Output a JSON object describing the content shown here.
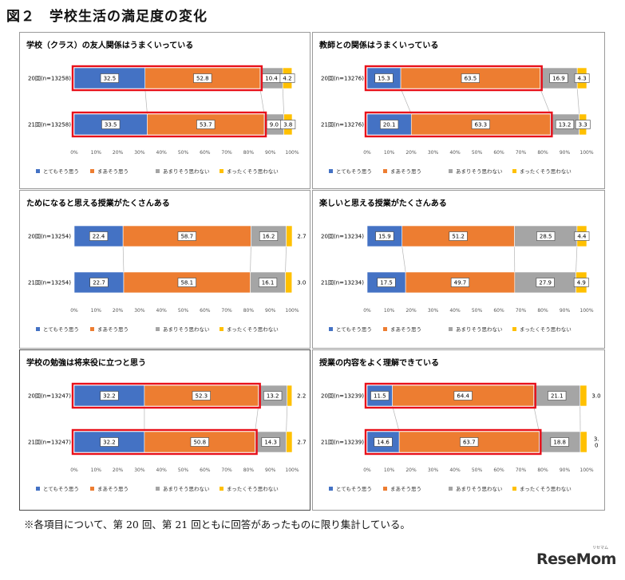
{
  "figure": {
    "title": "図２　学校生活の満足度の変化",
    "footnote": "※各項目について、第 20 回、第 21 回ともに回答があったものに限り集計している。",
    "watermark": "ReseMom",
    "watermark_sub": "リセマム"
  },
  "legend": [
    "とてもそう思う",
    "まあそう思う",
    "あまりそう思わない",
    "まったくそう思わない"
  ],
  "colors": [
    "#4472c4",
    "#ed7d31",
    "#a5a5a5",
    "#ffc000"
  ],
  "highlight_color": "#e8101a",
  "chart_data": [
    {
      "type": "bar",
      "title": "学校（クラス）の友人関係はうまくいっている",
      "categories": [
        "20回(n=13258)",
        "21回(n=13258)"
      ],
      "series": [
        {
          "name": "とてもそう思う",
          "values": [
            32.5,
            33.5
          ]
        },
        {
          "name": "まあそう思う",
          "values": [
            52.8,
            53.7
          ]
        },
        {
          "name": "あまりそう思わない",
          "values": [
            10.4,
            9.0
          ]
        },
        {
          "name": "まったくそう思わない",
          "values": [
            4.2,
            3.8
          ]
        }
      ],
      "labels": [
        [
          "32.5",
          "52.8",
          "10.4",
          "4.2"
        ],
        [
          "33.5",
          "53.7",
          "9.0",
          "3.8"
        ]
      ],
      "outside": [
        false,
        false
      ],
      "highlight": [
        true,
        true
      ],
      "xlim": [
        0,
        100
      ],
      "xticks": [
        "0%",
        "10%",
        "20%",
        "30%",
        "40%",
        "50%",
        "60%",
        "70%",
        "80%",
        "90%",
        "100%"
      ],
      "legend_position": "bottom"
    },
    {
      "type": "bar",
      "title": "教師との関係はうまくいっている",
      "categories": [
        "20回(n=13276)",
        "21回(n=13276)"
      ],
      "series": [
        {
          "name": "とてもそう思う",
          "values": [
            15.3,
            20.1
          ]
        },
        {
          "name": "まあそう思う",
          "values": [
            63.5,
            63.3
          ]
        },
        {
          "name": "あまりそう思わない",
          "values": [
            16.9,
            13.2
          ]
        },
        {
          "name": "まったくそう思わない",
          "values": [
            4.3,
            3.3
          ]
        }
      ],
      "labels": [
        [
          "15.3",
          "63.5",
          "16.9",
          "4.3"
        ],
        [
          "20.1",
          "63.3",
          "13.2",
          "3.3"
        ]
      ],
      "outside": [
        false,
        false
      ],
      "highlight": [
        true,
        true
      ],
      "xlim": [
        0,
        100
      ],
      "xticks": [
        "0%",
        "10%",
        "20%",
        "30%",
        "40%",
        "50%",
        "60%",
        "70%",
        "80%",
        "90%",
        "100%"
      ],
      "legend_position": "bottom"
    },
    {
      "type": "bar",
      "title": "ためになると思える授業がたくさんある",
      "categories": [
        "20回(n=13254)",
        "21回(n=13254)"
      ],
      "series": [
        {
          "name": "とてもそう思う",
          "values": [
            22.4,
            22.7
          ]
        },
        {
          "name": "まあそう思う",
          "values": [
            58.7,
            58.1
          ]
        },
        {
          "name": "あまりそう思わない",
          "values": [
            16.2,
            16.1
          ]
        },
        {
          "name": "まったくそう思わない",
          "values": [
            2.7,
            3.0
          ]
        }
      ],
      "labels": [
        [
          "22.4",
          "58.7",
          "16.2",
          "2.7"
        ],
        [
          "22.7",
          "58.1",
          "16.1",
          "3.0"
        ]
      ],
      "outside": [
        true,
        true
      ],
      "highlight": [
        false,
        false
      ],
      "xlim": [
        0,
        100
      ],
      "xticks": [
        "0%",
        "10%",
        "20%",
        "30%",
        "40%",
        "50%",
        "60%",
        "70%",
        "80%",
        "90%",
        "100%"
      ],
      "legend_position": "bottom"
    },
    {
      "type": "bar",
      "title": "楽しいと思える授業がたくさんある",
      "categories": [
        "20回(n=13234)",
        "21回(n=13234)"
      ],
      "series": [
        {
          "name": "とてもそう思う",
          "values": [
            15.9,
            17.5
          ]
        },
        {
          "name": "まあそう思う",
          "values": [
            51.2,
            49.7
          ]
        },
        {
          "name": "あまりそう思わない",
          "values": [
            28.5,
            27.9
          ]
        },
        {
          "name": "まったくそう思わない",
          "values": [
            4.4,
            4.9
          ]
        }
      ],
      "labels": [
        [
          "15.9",
          "51.2",
          "28.5",
          "4.4"
        ],
        [
          "17.5",
          "49.7",
          "27.9",
          "4.9"
        ]
      ],
      "outside": [
        false,
        false
      ],
      "highlight": [
        false,
        false
      ],
      "xlim": [
        0,
        100
      ],
      "xticks": [
        "0%",
        "10%",
        "20%",
        "30%",
        "40%",
        "50%",
        "60%",
        "70%",
        "80%",
        "90%",
        "100%"
      ],
      "legend_position": "bottom"
    },
    {
      "type": "bar",
      "title": "学校の勉強は将来役に立つと思う",
      "categories": [
        "20回(n=13247)",
        "21回(n=13247)"
      ],
      "series": [
        {
          "name": "とてもそう思う",
          "values": [
            32.2,
            32.2
          ]
        },
        {
          "name": "まあそう思う",
          "values": [
            52.3,
            50.8
          ]
        },
        {
          "name": "あまりそう思わない",
          "values": [
            13.2,
            14.3
          ]
        },
        {
          "name": "まったくそう思わない",
          "values": [
            2.2,
            2.7
          ]
        }
      ],
      "labels": [
        [
          "32.2",
          "52.3",
          "13.2",
          "2.2"
        ],
        [
          "32.2",
          "50.8",
          "14.3",
          "2.7"
        ]
      ],
      "outside": [
        true,
        true
      ],
      "highlight": [
        true,
        true
      ],
      "xlim": [
        0,
        100
      ],
      "xticks": [
        "0%",
        "10%",
        "20%",
        "30%",
        "40%",
        "50%",
        "60%",
        "70%",
        "80%",
        "90%",
        "100%"
      ],
      "legend_position": "bottom"
    },
    {
      "type": "bar",
      "title": "授業の内容をよく理解できている",
      "categories": [
        "20回(n=13239)",
        "21回(n=13239)"
      ],
      "series": [
        {
          "name": "とてもそう思う",
          "values": [
            11.5,
            14.6
          ]
        },
        {
          "name": "まあそう思う",
          "values": [
            64.4,
            63.7
          ]
        },
        {
          "name": "あまりそう思わない",
          "values": [
            21.1,
            18.8
          ]
        },
        {
          "name": "まったくそう思わない",
          "values": [
            3.0,
            3.0
          ]
        }
      ],
      "labels": [
        [
          "11.5",
          "64.4",
          "21.1",
          "3.0"
        ],
        [
          "14.6",
          "63.7",
          "18.8",
          "3.\n0"
        ]
      ],
      "outside": [
        true,
        true
      ],
      "highlight": [
        true,
        true
      ],
      "xlim": [
        0,
        100
      ],
      "xticks": [
        "0%",
        "10%",
        "20%",
        "30%",
        "40%",
        "50%",
        "60%",
        "70%",
        "80%",
        "90%",
        "100%"
      ],
      "legend_position": "bottom"
    }
  ]
}
